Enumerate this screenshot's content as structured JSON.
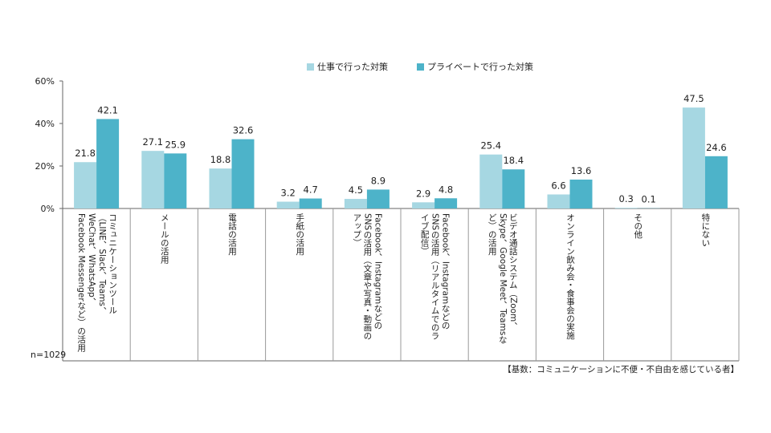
{
  "legend": {
    "series1_label": "仕事で行った対策",
    "series2_label": "プライベートで行った対策"
  },
  "notes": {
    "sample_size": "n=1029",
    "base": "【基数：コミュニケーションに不便・不自由を感じている者】"
  },
  "colors": {
    "series1": "#a6d7e2",
    "series2": "#4db3c9",
    "axis": "#666666",
    "grid": "#999999"
  },
  "chart_data": {
    "type": "bar",
    "categories": [
      "コミュニケーションツール\n（LINE、Slack、Teams、\nWeChat、WhatsApp、\nFacebook Messengerなど）の活用",
      "メールの活用",
      "電話の活用",
      "手紙の活用",
      "Facebook、Instagramなどの\nSNSの活用（文章や写真・動画の\nアップ）",
      "Facebook、Instagramなどの\nSNSの活用（リアルタイムでのラ\nイブ配信）",
      "ビデオ通話システム（Zoom、\nSkype、Google Meet、Teamsな\nど）の活用",
      "オンライン飲み会・食事会の実施",
      "その他",
      "特にない"
    ],
    "series": [
      {
        "name": "仕事で行った対策",
        "values": [
          21.8,
          27.1,
          18.8,
          3.2,
          4.5,
          2.9,
          25.4,
          6.6,
          0.3,
          47.5
        ]
      },
      {
        "name": "プライベートで行った対策",
        "values": [
          42.1,
          25.9,
          32.6,
          4.7,
          8.9,
          4.8,
          18.4,
          13.6,
          0.1,
          24.6
        ]
      }
    ],
    "y_ticks": [
      "0%",
      "20%",
      "40%",
      "60%"
    ],
    "ylim": [
      0,
      60
    ],
    "legend_position": "top"
  }
}
